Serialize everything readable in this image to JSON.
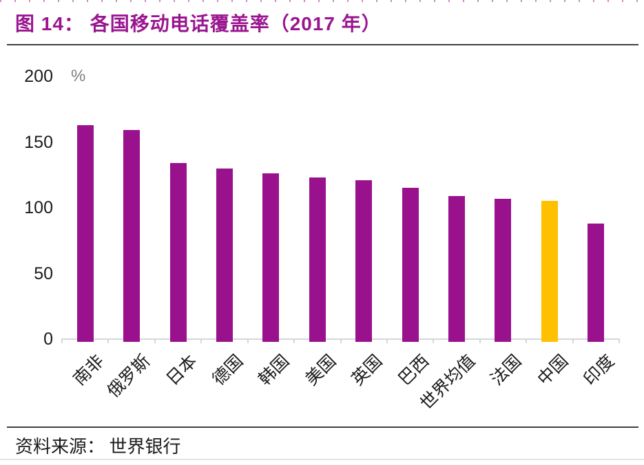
{
  "page": {
    "title": "图 14：  各国移动电话覆盖率（2017 年）",
    "source_label": "资料来源：  世界银行"
  },
  "colors": {
    "title_accent": "#9A1590",
    "bar": "#99118D",
    "highlight": "#FFC000",
    "axis": "#d6d6d6"
  },
  "chart_data": {
    "type": "bar",
    "title": "各国移动电话覆盖率（2017 年）",
    "unit": "%",
    "categories": [
      "南非",
      "俄罗斯",
      "日本",
      "德国",
      "韩国",
      "美国",
      "英国",
      "巴西",
      "世界均值",
      "法国",
      "中国",
      "印度"
    ],
    "values": [
      163,
      159,
      134,
      130,
      126,
      123,
      121,
      115,
      109,
      107,
      105,
      88
    ],
    "y_ticks": [
      0,
      50,
      100,
      150,
      200
    ],
    "ylim": [
      0,
      200
    ],
    "xlabel": "",
    "ylabel": "%",
    "grid": false,
    "legend": false,
    "bar_color": "#99118D",
    "highlight_category": "中国",
    "highlight_index": 10,
    "highlight_color": "#FFC000"
  }
}
